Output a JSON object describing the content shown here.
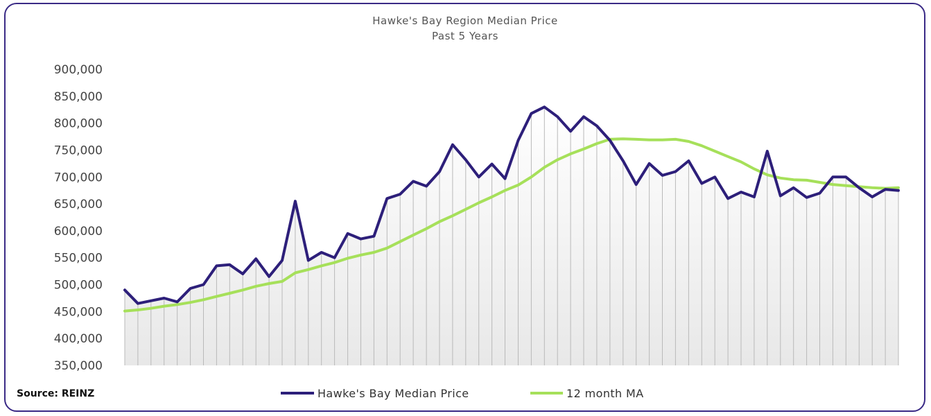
{
  "chart_data": {
    "type": "line",
    "title": "Hawke's Bay Region Median Price",
    "subtitle": "Past 5 Years",
    "source": "Source: REINZ",
    "ylim": [
      350000,
      900000
    ],
    "yticks": [
      "900,000",
      "850,000",
      "800,000",
      "750,000",
      "700,000",
      "650,000",
      "600,000",
      "550,000",
      "500,000",
      "450,000",
      "400,000",
      "350,000"
    ],
    "grid": "vertical dropline per month",
    "legend_position": "bottom",
    "series": [
      {
        "name": "Hawke's Bay Median Price",
        "color": "#2d1f7a",
        "values": [
          490000,
          465000,
          470000,
          475000,
          468000,
          493000,
          500000,
          535000,
          537000,
          520000,
          548000,
          515000,
          545000,
          655000,
          545000,
          560000,
          550000,
          595000,
          585000,
          590000,
          660000,
          668000,
          692000,
          683000,
          710000,
          760000,
          732000,
          700000,
          724000,
          697000,
          768000,
          818000,
          830000,
          812000,
          785000,
          812000,
          795000,
          768000,
          730000,
          686000,
          725000,
          703000,
          710000,
          730000,
          688000,
          700000,
          660000,
          672000,
          663000,
          748000,
          665000,
          680000,
          662000,
          670000,
          700000,
          700000,
          680000,
          663000,
          677000,
          675000
        ]
      },
      {
        "name": "12 month MA",
        "color": "#a6e05a",
        "values": [
          451000,
          453000,
          456000,
          460000,
          463000,
          467000,
          472000,
          478000,
          484000,
          490000,
          497000,
          502000,
          506000,
          522000,
          528000,
          535000,
          541000,
          549000,
          555000,
          560000,
          568000,
          580000,
          592000,
          604000,
          617000,
          628000,
          640000,
          652000,
          663000,
          675000,
          685000,
          700000,
          718000,
          732000,
          743000,
          752000,
          762000,
          770000,
          771000,
          770000,
          769000,
          769000,
          770000,
          766000,
          758000,
          748000,
          738000,
          728000,
          715000,
          704000,
          698000,
          695000,
          694000,
          690000,
          686000,
          684000,
          682000,
          680000,
          679000,
          680000
        ]
      }
    ]
  }
}
